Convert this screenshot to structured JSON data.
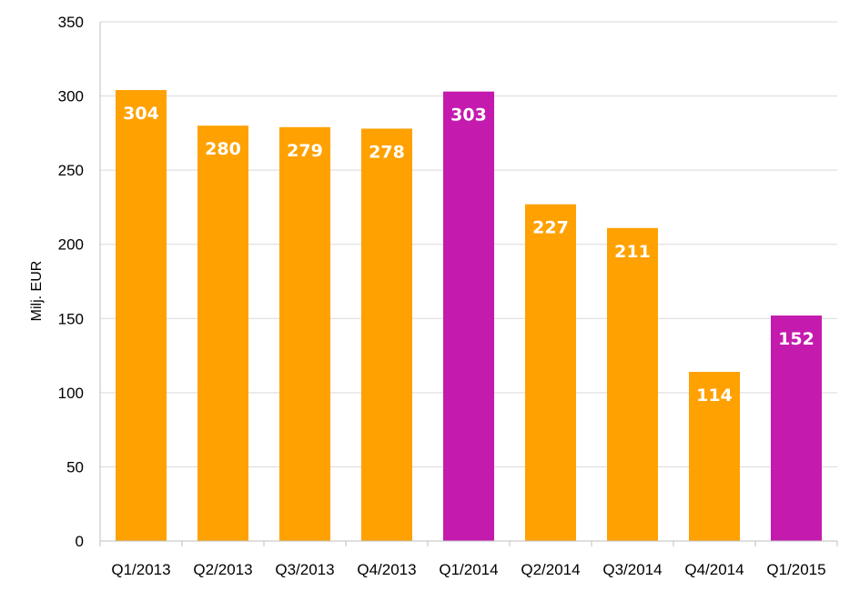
{
  "chart_data": {
    "type": "bar",
    "categories": [
      "Q1/2013",
      "Q2/2013",
      "Q3/2013",
      "Q4/2013",
      "Q1/2014",
      "Q2/2014",
      "Q3/2014",
      "Q4/2014",
      "Q1/2015"
    ],
    "values": [
      304,
      280,
      279,
      278,
      303,
      227,
      211,
      114,
      152
    ],
    "data_labels": [
      "304",
      "280",
      "279",
      "278",
      "303",
      "227",
      "211",
      "114",
      "152"
    ],
    "bar_colors": [
      "#FFA100",
      "#FFA100",
      "#FFA100",
      "#FFA100",
      "#C41BAE",
      "#FFA100",
      "#FFA100",
      "#FFA100",
      "#C41BAE"
    ],
    "title": "",
    "xlabel": "",
    "ylabel": "Milj. EUR",
    "ylim": [
      0,
      350
    ],
    "yticks": [
      0,
      50,
      100,
      150,
      200,
      250,
      300,
      350
    ],
    "grid": true,
    "legend": "none"
  },
  "colors": {
    "primary_bar": "#FFA100",
    "highlight_bar": "#C41BAE",
    "gridline": "#D9D9D9",
    "axis": "#BFBFBF",
    "label_text": "#FFFFFF"
  }
}
